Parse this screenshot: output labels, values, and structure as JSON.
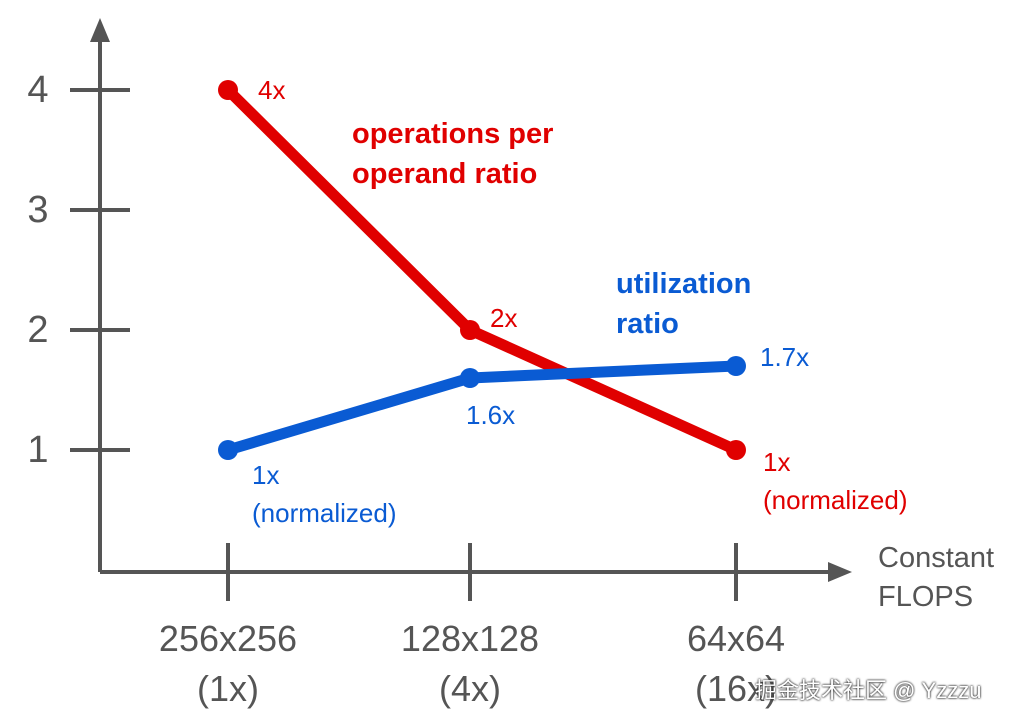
{
  "chart_data": {
    "type": "line",
    "categories": [
      "256x256\n(1x)",
      "128x128\n(4x)",
      "64x64\n(16x)"
    ],
    "x_label": "Constant\nFLOPS",
    "series": [
      {
        "name": "operations per\noperand ratio",
        "color": "#e00000",
        "values": [
          4,
          2,
          1
        ],
        "value_labels": [
          "4x",
          "2x",
          "1x\n(normalized)"
        ]
      },
      {
        "name": "utilization\nratio",
        "color": "#0a5bd3",
        "values": [
          1,
          1.6,
          1.7
        ],
        "value_labels": [
          "1x\n(normalized)",
          "1.6x",
          "1.7x"
        ]
      }
    ],
    "ylim": [
      0,
      4.6
    ],
    "yticks": [
      1,
      2,
      3,
      4
    ],
    "watermark": "掘金技术社区 @ Yzzzu"
  }
}
